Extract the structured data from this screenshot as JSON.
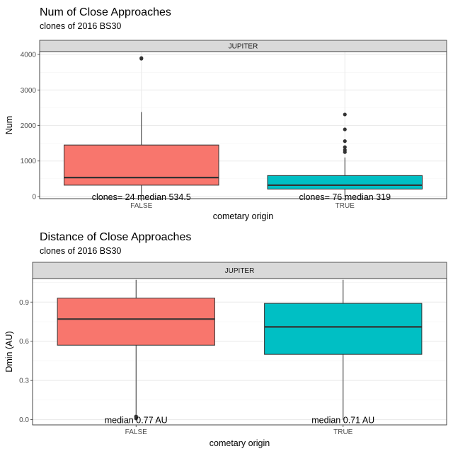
{
  "chart_data": [
    {
      "type": "boxplot",
      "title": "Num of Close Approaches",
      "subtitle": "clones of 2016 BS30",
      "facet": "JUPITER",
      "xlabel": "cometary origin",
      "ylabel": "Num",
      "ylim": [
        -60,
        4080
      ],
      "yticks": [
        0,
        1000,
        2000,
        3000,
        4000
      ],
      "grid": true,
      "categories": [
        "FALSE",
        "TRUE"
      ],
      "boxes": [
        {
          "category": "FALSE",
          "color": "#F8766D",
          "q1": 320,
          "median": 534.5,
          "q3": 1450,
          "whisker_low": 0,
          "whisker_high": 2380,
          "outliers": [
            3880,
            3900
          ],
          "label": "clones= 24 median 534.5"
        },
        {
          "category": "TRUE",
          "color": "#00BFC4",
          "q1": 210,
          "median": 319,
          "q3": 590,
          "whisker_low": 0,
          "whisker_high": 1100,
          "outliers": [
            1250,
            1310,
            1390,
            1560,
            1890,
            2310
          ],
          "label": "clones= 76 median 319"
        }
      ]
    },
    {
      "type": "boxplot",
      "title": "Distance of Close Approaches",
      "subtitle": "clones of 2016 BS30",
      "facet": "JUPITER",
      "xlabel": "cometary origin",
      "ylabel": "Dmin (AU)",
      "ylim": [
        -0.04,
        1.08
      ],
      "yticks": [
        0.0,
        0.3,
        0.6,
        0.9
      ],
      "ytick_labels": [
        "0.0",
        "0.3",
        "0.6",
        "0.9"
      ],
      "grid": true,
      "categories": [
        "FALSE",
        "TRUE"
      ],
      "boxes": [
        {
          "category": "FALSE",
          "color": "#F8766D",
          "q1": 0.57,
          "median": 0.77,
          "q3": 0.93,
          "whisker_low": 0.04,
          "whisker_high": 1.07,
          "outliers": [
            0.01,
            0.02,
            0.025
          ],
          "label": "median 0.77 AU"
        },
        {
          "category": "TRUE",
          "color": "#00BFC4",
          "q1": 0.5,
          "median": 0.71,
          "q3": 0.89,
          "whisker_low": 0.0,
          "whisker_high": 1.07,
          "outliers": [],
          "label": "median 0.71 AU"
        }
      ]
    }
  ]
}
